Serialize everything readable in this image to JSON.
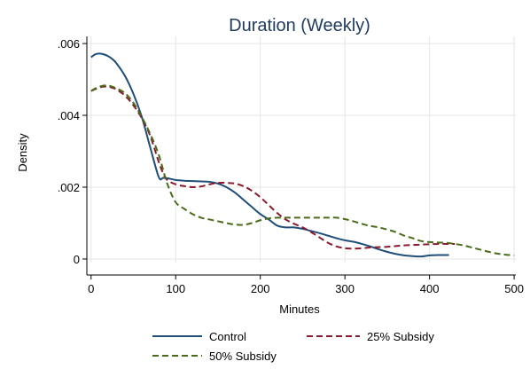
{
  "chart_data": {
    "type": "line",
    "title": "Duration (Weekly)",
    "xlabel": "Minutes",
    "ylabel": "Density",
    "xlim": [
      -5,
      502
    ],
    "ylim": [
      -0.0001,
      0.0062
    ],
    "x_ticks": [
      0,
      100,
      200,
      300,
      400,
      500
    ],
    "x_tick_labels": [
      "0",
      "100",
      "200",
      "300",
      "400",
      "500"
    ],
    "y_ticks": [
      0,
      0.002,
      0.004,
      0.006
    ],
    "y_tick_labels": [
      "0",
      ".002",
      ".004",
      ".006"
    ],
    "grid": true,
    "legend_position": "bottom",
    "series": [
      {
        "name": "Control",
        "color": "#1f4e79",
        "dash": "solid",
        "x": [
          0,
          5,
          10,
          15,
          20,
          25,
          30,
          40,
          50,
          60,
          70,
          80,
          85,
          90,
          100,
          110,
          120,
          130,
          140,
          150,
          160,
          170,
          180,
          190,
          200,
          210,
          220,
          230,
          240,
          250,
          260,
          270,
          280,
          290,
          300,
          310,
          320,
          330,
          340,
          350,
          360,
          370,
          380,
          390,
          400,
          410,
          423
        ],
        "y": [
          0.00562,
          0.0057,
          0.00572,
          0.0057,
          0.00565,
          0.00557,
          0.00545,
          0.0051,
          0.0046,
          0.00395,
          0.0031,
          0.00228,
          0.00226,
          0.00225,
          0.0022,
          0.00218,
          0.00217,
          0.00216,
          0.00215,
          0.0021,
          0.002,
          0.00185,
          0.00165,
          0.00145,
          0.00125,
          0.0011,
          0.00093,
          0.00088,
          0.00088,
          0.00084,
          0.00078,
          0.00072,
          0.00065,
          0.00058,
          0.00052,
          0.00048,
          0.00042,
          0.00035,
          0.00027,
          0.0002,
          0.00014,
          0.0001,
          8e-05,
          7e-05,
          0.0001,
          0.00011,
          0.00011
        ]
      },
      {
        "name": "25% Subsidy",
        "color": "#8b1a2e",
        "dash": "dashed",
        "x": [
          0,
          5,
          10,
          15,
          20,
          25,
          30,
          40,
          50,
          60,
          70,
          80,
          85,
          90,
          100,
          110,
          120,
          130,
          140,
          150,
          160,
          170,
          180,
          190,
          200,
          210,
          220,
          230,
          240,
          250,
          260,
          270,
          280,
          290,
          300,
          310,
          320,
          330,
          340,
          350,
          360,
          370,
          380,
          390,
          400,
          410,
          420,
          430
        ],
        "y": [
          0.00468,
          0.00473,
          0.00478,
          0.0048,
          0.0048,
          0.00477,
          0.00472,
          0.00455,
          0.00428,
          0.00392,
          0.00342,
          0.0027,
          0.0024,
          0.0022,
          0.00208,
          0.00203,
          0.002,
          0.00202,
          0.00208,
          0.00212,
          0.00212,
          0.0021,
          0.00203,
          0.0019,
          0.00172,
          0.0015,
          0.00128,
          0.0011,
          0.00098,
          0.00088,
          0.00075,
          0.0006,
          0.00045,
          0.00035,
          0.0003,
          0.00029,
          0.0003,
          0.00032,
          0.00033,
          0.00034,
          0.00036,
          0.00038,
          0.00039,
          0.0004,
          0.00041,
          0.00042,
          0.00042,
          0.00042
        ]
      },
      {
        "name": "50% Subsidy",
        "color": "#4a6b1a",
        "dash": "dashed",
        "x": [
          0,
          5,
          10,
          15,
          20,
          25,
          30,
          40,
          50,
          60,
          70,
          80,
          90,
          100,
          110,
          120,
          130,
          140,
          150,
          160,
          170,
          180,
          190,
          200,
          210,
          220,
          230,
          240,
          250,
          260,
          270,
          280,
          290,
          300,
          310,
          320,
          330,
          340,
          350,
          360,
          370,
          380,
          390,
          400,
          410,
          420,
          430,
          440,
          450,
          460,
          470,
          480,
          490,
          500
        ],
        "y": [
          0.00468,
          0.00475,
          0.0048,
          0.00483,
          0.00483,
          0.0048,
          0.00475,
          0.00462,
          0.00435,
          0.00395,
          0.00348,
          0.0029,
          0.0021,
          0.00158,
          0.0014,
          0.00125,
          0.00115,
          0.0011,
          0.00105,
          0.001,
          0.00096,
          0.00095,
          0.001,
          0.00108,
          0.00113,
          0.00115,
          0.00115,
          0.00115,
          0.00115,
          0.00115,
          0.00115,
          0.00115,
          0.00115,
          0.00111,
          0.00105,
          0.00098,
          0.00092,
          0.00088,
          0.00082,
          0.00075,
          0.00065,
          0.00058,
          0.0005,
          0.00047,
          0.00046,
          0.00045,
          0.00042,
          0.00038,
          0.00032,
          0.00026,
          0.0002,
          0.00015,
          0.00012,
          0.0001
        ]
      }
    ]
  }
}
